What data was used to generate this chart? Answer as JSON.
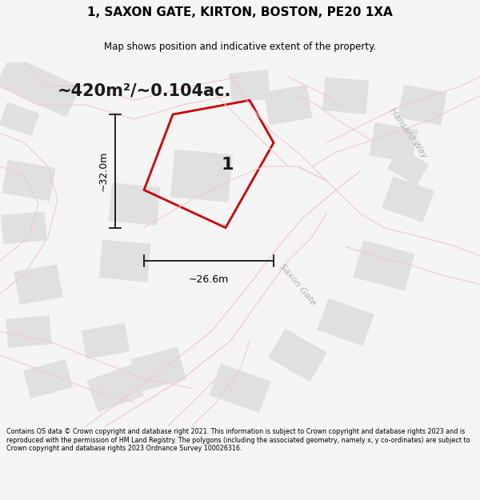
{
  "title_line1": "1, SAXON GATE, KIRTON, BOSTON, PE20 1XA",
  "title_line2": "Map shows position and indicative extent of the property.",
  "area_text": "~420m²/~0.104ac.",
  "width_label": "~26.6m",
  "height_label": "~32.0m",
  "plot_number": "1",
  "footer_text": "Contains OS data © Crown copyright and database right 2021. This information is subject to Crown copyright and database rights 2023 and is reproduced with the permission of HM Land Registry. The polygons (including the associated geometry, namely x, y co-ordinates) are subject to Crown copyright and database rights 2023 Ordnance Survey 100026316.",
  "bg_color": "#f5f5f5",
  "map_bg": "#ffffff",
  "building_fill": "#e0e0e0",
  "building_stroke": "#e0e0e0",
  "plot_stroke": "#cc0000",
  "dim_line_color": "#000000",
  "road_color": "#f2c8cc",
  "street_label_color": "#b0b0b0",
  "title_color": "#000000",
  "footer_color": "#000000",
  "title_fontsize": 11,
  "subtitle_fontsize": 8.5,
  "area_fontsize": 15,
  "dim_fontsize": 9,
  "plot_num_fontsize": 16,
  "street_fontsize": 8,
  "footer_fontsize": 5.8
}
